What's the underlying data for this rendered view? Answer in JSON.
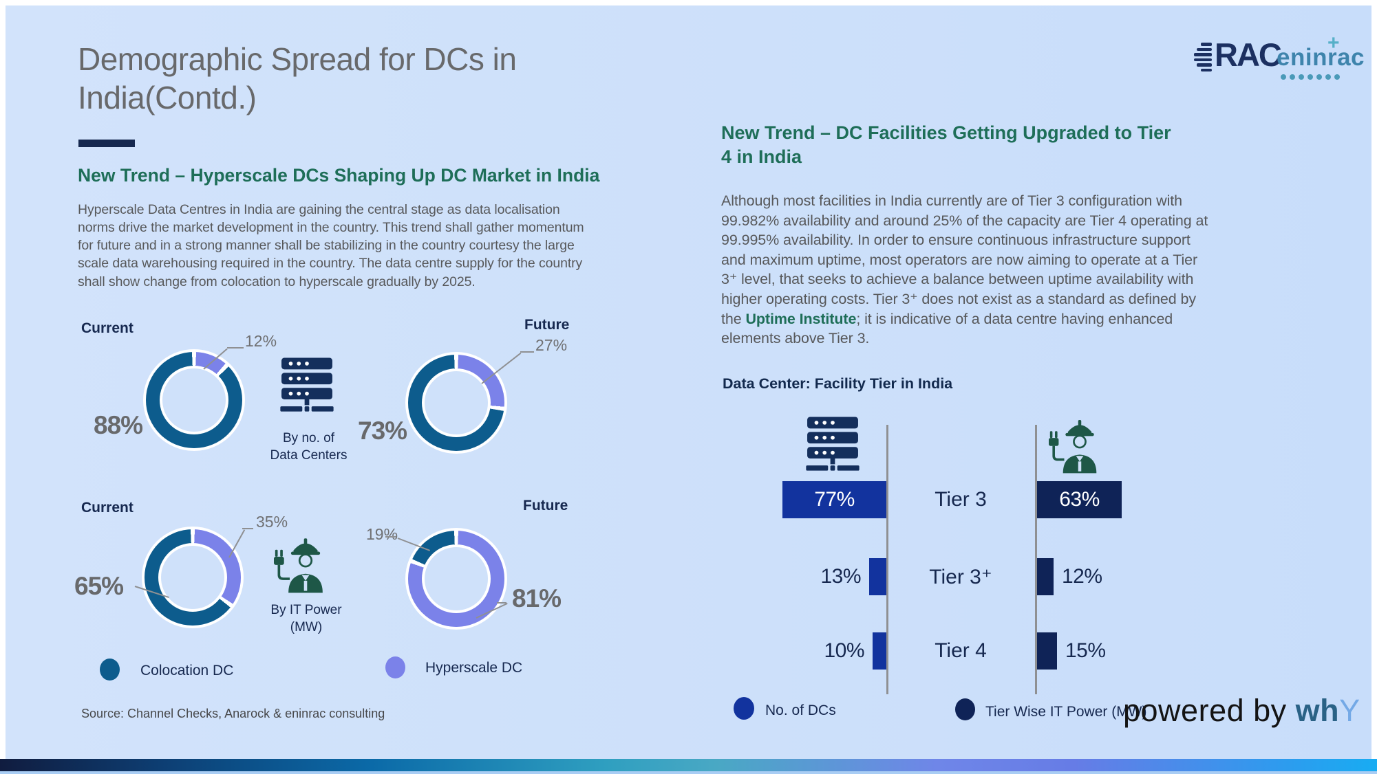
{
  "colors": {
    "colocation": "#0d5c8d",
    "hyperscale": "#7b82e9",
    "dcs_bar": "#12339e",
    "power_bar": "#0f2357",
    "accent_navy": "#16284f",
    "heading_green": "#1e6e58",
    "title_gray": "#68696b",
    "axis_gray": "#8f9092"
  },
  "header": {
    "title": "Demographic Spread for DCs in India(Contd.)"
  },
  "brand": {
    "logo_rac": "RAC",
    "logo_eninrac": "eninrac",
    "logo_plus": "+",
    "powered_prefix": "powered by ",
    "powered_wh": "wh",
    "powered_y": "Y"
  },
  "left_panel": {
    "heading": "New Trend – Hyperscale DCs Shaping Up DC Market in India",
    "body": "Hyperscale Data Centres in India are gaining the central stage as data localisation norms drive the market development in the country. This trend shall gather momentum  for future and in a strong manner shall be stabilizing in the country courtesy the large scale data warehousing required in the country. The data centre supply for the country shall show change from colocation to hyperscale gradually by 2025.",
    "legend": [
      {
        "label": "Colocation DC"
      },
      {
        "label": "Hyperscale DC"
      }
    ],
    "source": "Source: Channel Checks, Anarock & eninrac consulting"
  },
  "right_panel": {
    "heading": "New Trend – DC Facilities Getting Upgraded to Tier 4 in India",
    "body_before": "Although most facilities in India currently are of Tier 3 configuration with 99.982% availability and around 25% of the capacity are Tier 4 operating at 99.995% availability. In order to ensure continuous infrastructure support and maximum uptime, most operators are now aiming to operate at a Tier 3⁺ level, that seeks to  achieve a balance between uptime availability with higher operating costs. Tier 3⁺ does not exist as a standard as defined by the ",
    "body_link": "Uptime Institute",
    "body_after": "; it is indicative of a data centre having enhanced elements  above Tier 3.",
    "chart_title": "Data Center: Facility Tier in India"
  },
  "chart_data": [
    {
      "type": "pie",
      "variant": "donut-pair",
      "group_label": "By no. of\nData Centers",
      "group_icon": "server-icon",
      "legend": [
        "Colocation DC",
        "Hyperscale DC"
      ],
      "donuts": [
        {
          "label": "Current",
          "main": "88%",
          "callout": "12%",
          "colocation_pct": 88,
          "hyperscale_pct": 12
        },
        {
          "label": "Future",
          "main": "73%",
          "callout": "27%",
          "colocation_pct": 73,
          "hyperscale_pct": 27
        }
      ]
    },
    {
      "type": "pie",
      "variant": "donut-pair",
      "group_label": "By IT Power\n(MW)",
      "group_icon": "engineer-icon",
      "legend": [
        "Colocation DC",
        "Hyperscale DC"
      ],
      "donuts": [
        {
          "label": "Current",
          "main": "65%",
          "callout": "35%",
          "colocation_pct": 65,
          "hyperscale_pct": 35
        },
        {
          "label": "Future",
          "main": "81%",
          "callout": "19%",
          "colocation_pct": 19,
          "hyperscale_pct": 81
        }
      ]
    },
    {
      "type": "bar",
      "variant": "tornado",
      "title": "Data Center: Facility Tier in India",
      "categories": [
        "Tier 3",
        "Tier 3⁺",
        "Tier 4"
      ],
      "unit": "%",
      "axis": "center-mirrored",
      "legend_position": "bottom",
      "series": [
        {
          "name": "No. of DCs",
          "values": [
            77,
            13,
            10
          ],
          "color": "#12339e"
        },
        {
          "name": "Tier Wise IT Power (MW)",
          "values": [
            63,
            12,
            15
          ],
          "color": "#0f2357"
        }
      ]
    }
  ]
}
